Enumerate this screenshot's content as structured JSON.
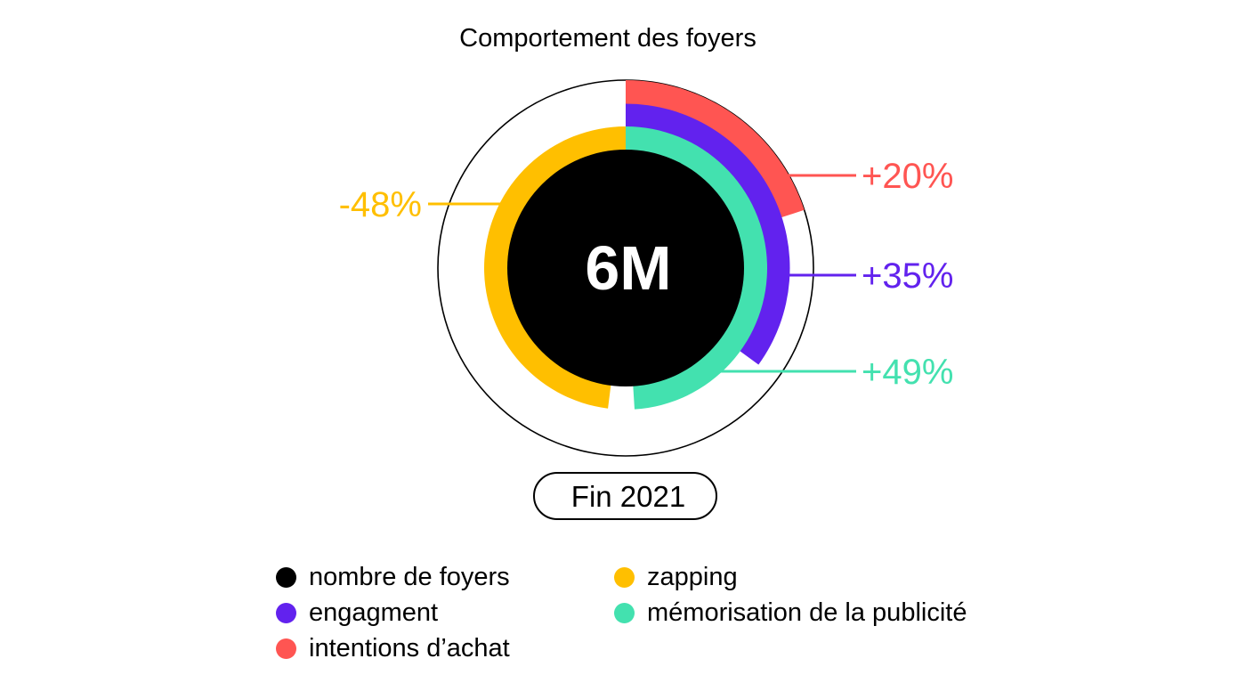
{
  "chart_data": {
    "type": "radial-bar",
    "title": "Comportement des foyers",
    "center_value": "6M",
    "period": "Fin 2021",
    "series": [
      {
        "name": "intentions d’achat",
        "value": 20,
        "label": "+20%",
        "color": "#FF5552"
      },
      {
        "name": "engagment",
        "value": 35,
        "label": "+35%",
        "color": "#6222EE"
      },
      {
        "name": "mémorisation de la publicité",
        "value": 49,
        "label": "+49%",
        "color": "#43E1AF"
      },
      {
        "name": "zapping",
        "value": -48,
        "label": "-48%",
        "color": "#FFBF00"
      }
    ],
    "base": {
      "name": "nombre de foyers",
      "color": "#000000"
    }
  },
  "legend": [
    {
      "label": "nombre de foyers",
      "color": "#000000"
    },
    {
      "label": "engagment",
      "color": "#6222EE"
    },
    {
      "label": "intentions d’achat",
      "color": "#FF5552"
    },
    {
      "label": "zapping",
      "color": "#FFBF00"
    },
    {
      "label": "mémorisation de la publicité",
      "color": "#43E1AF"
    }
  ]
}
